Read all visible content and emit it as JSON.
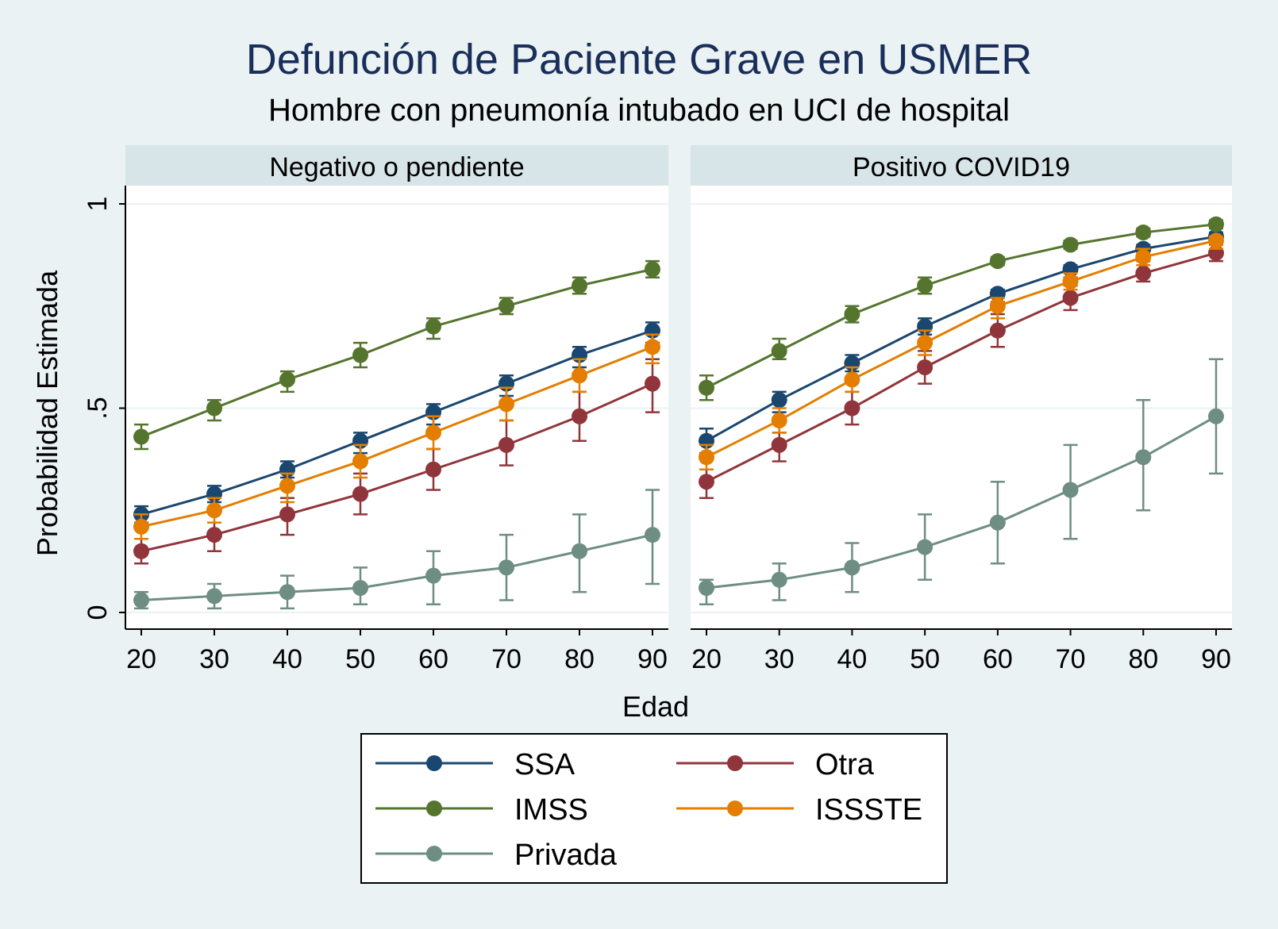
{
  "chart_data": {
    "type": "line",
    "title": "Defunción de Paciente Grave en USMER",
    "subtitle": "Hombre con pneumonía intubado en UCI de hospital",
    "xlabel": "Edad",
    "ylabel": "Probabilidad Estimada",
    "x": [
      20,
      30,
      40,
      50,
      60,
      70,
      80,
      90
    ],
    "x_ticks": [
      "20",
      "30",
      "40",
      "50",
      "60",
      "70",
      "80",
      "90"
    ],
    "ylim": [
      0,
      1
    ],
    "y_ticks": [
      {
        "value": 0,
        "label": "0"
      },
      {
        "value": 0.5,
        "label": ".5"
      },
      {
        "value": 1,
        "label": "1"
      }
    ],
    "grid": true,
    "error_bars": true,
    "legend_position": "bottom",
    "panels": [
      {
        "title": "Negativo o pendiente",
        "series": [
          {
            "name": "SSA",
            "color": "#1a476f",
            "values": [
              0.24,
              0.29,
              0.35,
              0.42,
              0.49,
              0.56,
              0.63,
              0.69
            ],
            "lower": [
              0.22,
              0.27,
              0.33,
              0.39,
              0.46,
              0.53,
              0.6,
              0.66
            ],
            "upper": [
              0.26,
              0.31,
              0.37,
              0.44,
              0.51,
              0.58,
              0.65,
              0.71
            ]
          },
          {
            "name": "IMSS",
            "color": "#55752f",
            "values": [
              0.43,
              0.5,
              0.57,
              0.63,
              0.7,
              0.75,
              0.8,
              0.84
            ],
            "lower": [
              0.4,
              0.47,
              0.54,
              0.6,
              0.67,
              0.73,
              0.78,
              0.82
            ],
            "upper": [
              0.46,
              0.52,
              0.59,
              0.66,
              0.72,
              0.77,
              0.82,
              0.86
            ]
          },
          {
            "name": "Privada",
            "color": "#6e8e84",
            "values": [
              0.03,
              0.04,
              0.05,
              0.06,
              0.09,
              0.11,
              0.15,
              0.19
            ],
            "lower": [
              0.01,
              0.01,
              0.01,
              0.02,
              0.02,
              0.03,
              0.05,
              0.07
            ],
            "upper": [
              0.05,
              0.07,
              0.09,
              0.11,
              0.15,
              0.19,
              0.24,
              0.3
            ]
          },
          {
            "name": "Otra",
            "color": "#90353b",
            "values": [
              0.15,
              0.19,
              0.24,
              0.29,
              0.35,
              0.41,
              0.48,
              0.56
            ],
            "lower": [
              0.12,
              0.15,
              0.19,
              0.24,
              0.3,
              0.36,
              0.42,
              0.49
            ],
            "upper": [
              0.18,
              0.22,
              0.28,
              0.34,
              0.4,
              0.47,
              0.54,
              0.62
            ]
          },
          {
            "name": "ISSSTE",
            "color": "#e37e00",
            "values": [
              0.21,
              0.25,
              0.31,
              0.37,
              0.44,
              0.51,
              0.58,
              0.65
            ],
            "lower": [
              0.18,
              0.22,
              0.27,
              0.33,
              0.4,
              0.47,
              0.54,
              0.61
            ],
            "upper": [
              0.24,
              0.28,
              0.34,
              0.41,
              0.48,
              0.55,
              0.62,
              0.68
            ]
          }
        ]
      },
      {
        "title": "Positivo COVID19",
        "series": [
          {
            "name": "SSA",
            "color": "#1a476f",
            "values": [
              0.42,
              0.52,
              0.61,
              0.7,
              0.78,
              0.84,
              0.89,
              0.92
            ],
            "lower": [
              0.39,
              0.49,
              0.59,
              0.68,
              0.76,
              0.82,
              0.87,
              0.91
            ],
            "upper": [
              0.45,
              0.54,
              0.63,
              0.72,
              0.79,
              0.85,
              0.9,
              0.93
            ]
          },
          {
            "name": "IMSS",
            "color": "#55752f",
            "values": [
              0.55,
              0.64,
              0.73,
              0.8,
              0.86,
              0.9,
              0.93,
              0.95
            ],
            "lower": [
              0.52,
              0.62,
              0.71,
              0.78,
              0.85,
              0.89,
              0.92,
              0.94
            ],
            "upper": [
              0.58,
              0.67,
              0.75,
              0.82,
              0.87,
              0.91,
              0.94,
              0.96
            ]
          },
          {
            "name": "Privada",
            "color": "#6e8e84",
            "values": [
              0.06,
              0.08,
              0.11,
              0.16,
              0.22,
              0.3,
              0.38,
              0.48
            ],
            "lower": [
              0.02,
              0.03,
              0.05,
              0.08,
              0.12,
              0.18,
              0.25,
              0.34
            ],
            "upper": [
              0.08,
              0.12,
              0.17,
              0.24,
              0.32,
              0.41,
              0.52,
              0.62
            ]
          },
          {
            "name": "Otra",
            "color": "#90353b",
            "values": [
              0.32,
              0.41,
              0.5,
              0.6,
              0.69,
              0.77,
              0.83,
              0.88
            ],
            "lower": [
              0.28,
              0.37,
              0.46,
              0.56,
              0.65,
              0.74,
              0.81,
              0.86
            ],
            "upper": [
              0.35,
              0.44,
              0.54,
              0.64,
              0.73,
              0.8,
              0.86,
              0.9
            ]
          },
          {
            "name": "ISSSTE",
            "color": "#e37e00",
            "values": [
              0.38,
              0.47,
              0.57,
              0.66,
              0.75,
              0.81,
              0.87,
              0.91
            ],
            "lower": [
              0.35,
              0.44,
              0.54,
              0.63,
              0.72,
              0.79,
              0.85,
              0.89
            ],
            "upper": [
              0.41,
              0.5,
              0.6,
              0.69,
              0.77,
              0.83,
              0.89,
              0.92
            ]
          }
        ]
      }
    ],
    "legend": [
      {
        "name": "SSA",
        "color": "#1a476f"
      },
      {
        "name": "Otra",
        "color": "#90353b"
      },
      {
        "name": "IMSS",
        "color": "#55752f"
      },
      {
        "name": "ISSSTE",
        "color": "#e37e00"
      },
      {
        "name": "Privada",
        "color": "#6e8e84"
      }
    ]
  }
}
